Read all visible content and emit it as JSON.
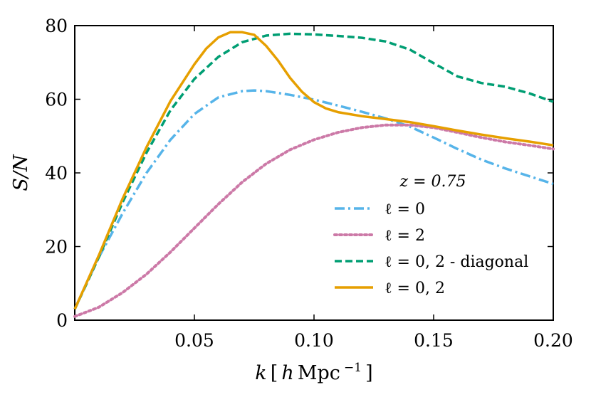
{
  "chart_data": {
    "type": "line",
    "title": "",
    "xlabel": "k [h Mpc⁻¹]",
    "ylabel": "S/N",
    "xlim": [
      0.0,
      0.2
    ],
    "ylim": [
      0,
      80
    ],
    "xticks": [
      0.05,
      0.1,
      0.15,
      0.2
    ],
    "xtick_labels": [
      "0.05",
      "0.10",
      "0.15",
      "0.20"
    ],
    "yticks": [
      0,
      20,
      40,
      60,
      80
    ],
    "ytick_labels": [
      "0",
      "20",
      "40",
      "60",
      "80"
    ],
    "grid": false,
    "legend": {
      "title": "z = 0.75",
      "placement": "lower-right"
    },
    "series": [
      {
        "name": "ℓ = 0",
        "color": "#56B4E9",
        "style": "dashdot",
        "x": [
          0.0,
          0.01,
          0.02,
          0.03,
          0.04,
          0.05,
          0.06,
          0.07,
          0.075,
          0.08,
          0.09,
          0.1,
          0.11,
          0.12,
          0.13,
          0.14,
          0.15,
          0.16,
          0.17,
          0.18,
          0.19,
          0.2
        ],
        "y": [
          3,
          17,
          29,
          40,
          49,
          56,
          60.5,
          62.2,
          62.4,
          62.2,
          61.2,
          59.9,
          58.3,
          56.6,
          54.8,
          52.6,
          49.6,
          46.5,
          43.6,
          41.2,
          39.1,
          37.0
        ]
      },
      {
        "name": "ℓ = 2",
        "color": "#CC79A7",
        "style": "dotted",
        "x": [
          0.0,
          0.01,
          0.02,
          0.03,
          0.04,
          0.05,
          0.06,
          0.07,
          0.08,
          0.09,
          0.1,
          0.11,
          0.12,
          0.13,
          0.14,
          0.15,
          0.16,
          0.17,
          0.18,
          0.19,
          0.2
        ],
        "y": [
          1,
          3.5,
          7.5,
          12.5,
          18.5,
          25,
          31.5,
          37.5,
          42.5,
          46.3,
          49,
          51,
          52.3,
          53,
          53,
          52.3,
          51,
          49.6,
          48.4,
          47.5,
          46.5
        ]
      },
      {
        "name": "ℓ = 0, 2 - diagonal",
        "color": "#009E73",
        "style": "dashed",
        "x": [
          0.0,
          0.01,
          0.02,
          0.03,
          0.04,
          0.05,
          0.06,
          0.07,
          0.08,
          0.09,
          0.1,
          0.11,
          0.12,
          0.13,
          0.14,
          0.15,
          0.16,
          0.17,
          0.18,
          0.19,
          0.2
        ],
        "y": [
          3,
          17,
          32,
          45.5,
          57,
          65.5,
          71.5,
          75.5,
          77.3,
          77.8,
          77.6,
          77.2,
          76.7,
          75.7,
          73.5,
          69.8,
          66.2,
          64.4,
          63.4,
          61.6,
          59.3
        ]
      },
      {
        "name": "ℓ = 0, 2",
        "color": "#E69F00",
        "style": "solid",
        "x": [
          0.0,
          0.01,
          0.02,
          0.03,
          0.04,
          0.05,
          0.055,
          0.06,
          0.065,
          0.07,
          0.075,
          0.08,
          0.085,
          0.09,
          0.095,
          0.1,
          0.105,
          0.11,
          0.12,
          0.13,
          0.14,
          0.15,
          0.16,
          0.17,
          0.18,
          0.19,
          0.2
        ],
        "y": [
          3,
          17.5,
          33,
          47,
          59.5,
          69.5,
          73.8,
          76.8,
          78.2,
          78.2,
          77.5,
          74.5,
          70.5,
          65.8,
          62,
          59.2,
          57.5,
          56.5,
          55.4,
          54.6,
          53.8,
          52.7,
          51.5,
          50.4,
          49.4,
          48.5,
          47.5
        ]
      }
    ]
  }
}
